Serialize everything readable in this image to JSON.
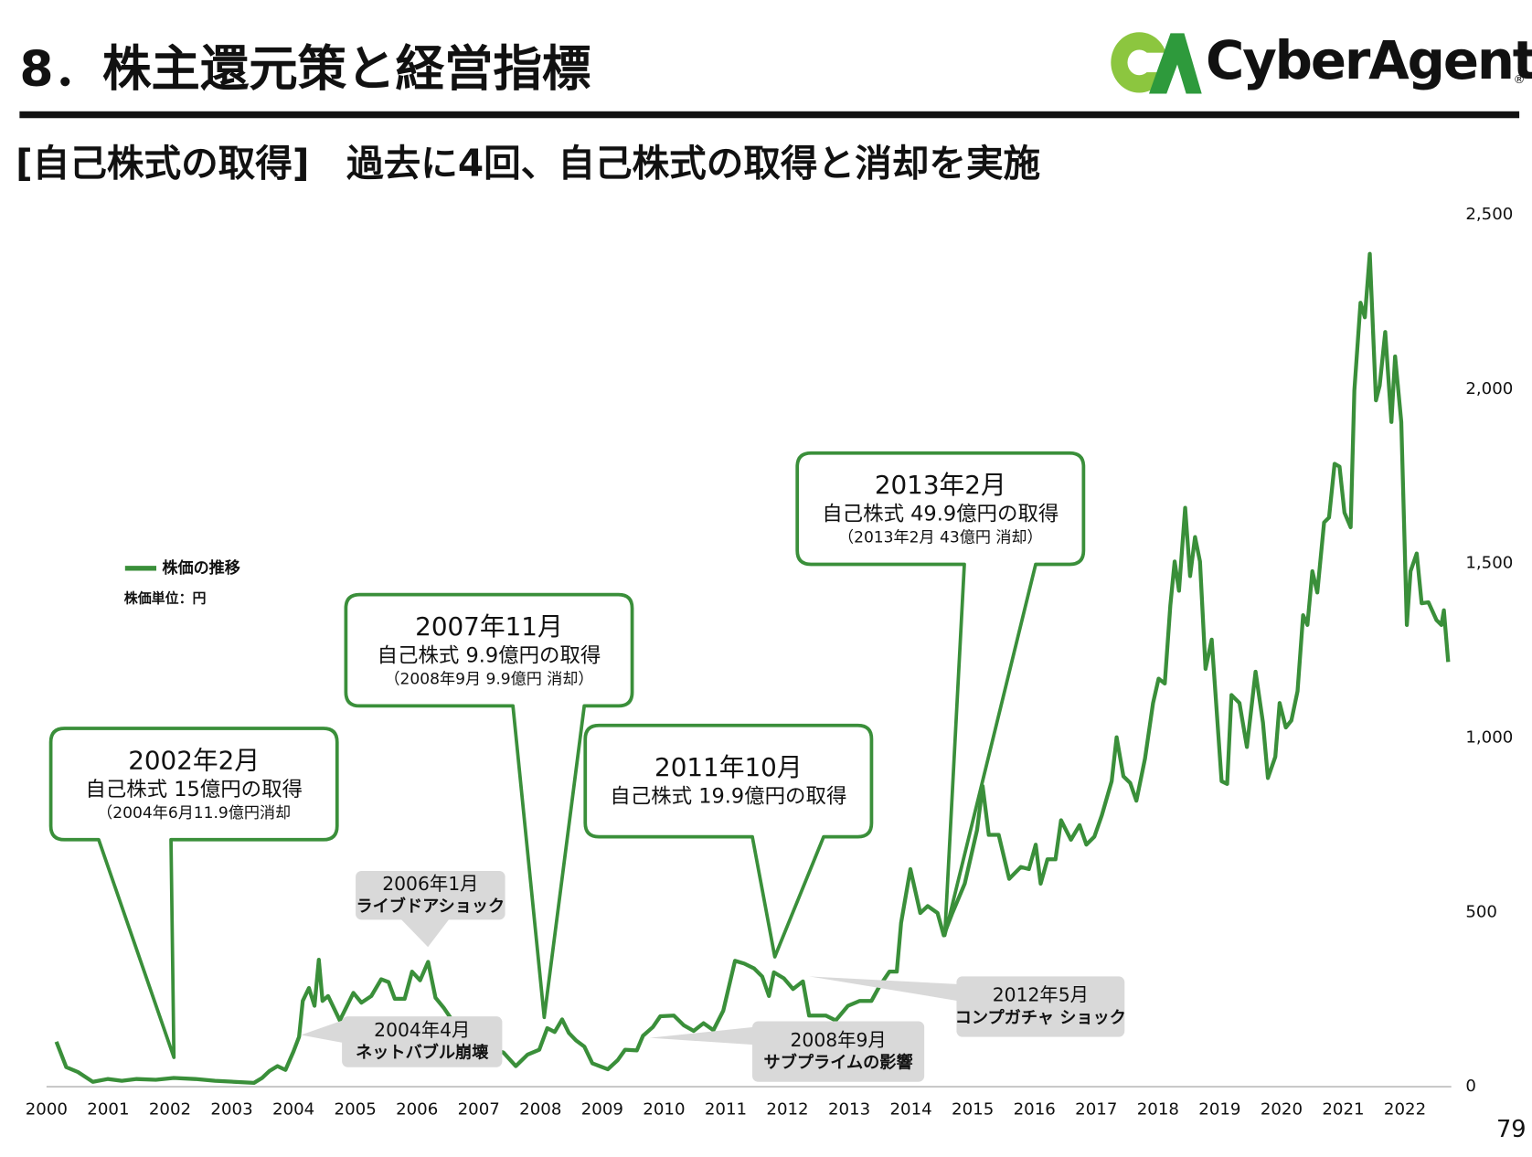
{
  "chart_data": {
    "type": "line",
    "title": "8．株主還元策と経営指標",
    "subtitle": "[自己株式の取得]　過去に4回、自己株式の取得と消却を実施",
    "logo": "CyberAgent",
    "logo_mark": "®",
    "page_number": "79",
    "unit_note": "株価単位：円",
    "x": [
      2000.16,
      2000.32,
      2000.51,
      2000.75,
      2000.99,
      2001.22,
      2001.46,
      2001.77,
      2002.06,
      2002.41,
      2002.73,
      2003.04,
      2003.36,
      2003.49,
      2003.61,
      2003.74,
      2003.87,
      2004.0,
      2004.09,
      2004.15,
      2004.25,
      2004.34,
      2004.41,
      2004.47,
      2004.56,
      2004.75,
      2004.97,
      2005.1,
      2005.26,
      2005.42,
      2005.54,
      2005.64,
      2005.8,
      2005.92,
      2006.05,
      2006.18,
      2006.3,
      2006.43,
      2006.68,
      2007.0,
      2007.4,
      2007.6,
      2007.79,
      2007.98,
      2008.11,
      2008.23,
      2008.35,
      2008.46,
      2008.58,
      2008.71,
      2008.84,
      2009.09,
      2009.25,
      2009.37,
      2009.56,
      2009.66,
      2009.82,
      2009.94,
      2010.16,
      2010.32,
      2010.48,
      2010.64,
      2010.8,
      2010.96,
      2011.15,
      2011.3,
      2011.46,
      2011.59,
      2011.7,
      2011.78,
      2011.94,
      2012.09,
      2012.25,
      2012.35,
      2012.47,
      2012.62,
      2012.78,
      2012.98,
      2013.17,
      2013.36,
      2013.49,
      2013.65,
      2013.77,
      2013.84,
      2013.99,
      2014.15,
      2014.27,
      2014.43,
      2014.53,
      2014.67,
      2014.87,
      2015.07,
      2015.16,
      2015.26,
      2015.42,
      2015.59,
      2015.78,
      2015.91,
      2016.02,
      2016.1,
      2016.21,
      2016.34,
      2016.43,
      2016.59,
      2016.73,
      2016.84,
      2016.97,
      2017.09,
      2017.25,
      2017.33,
      2017.44,
      2017.55,
      2017.65,
      2017.79,
      2017.92,
      2018.01,
      2018.11,
      2018.2,
      2018.27,
      2018.34,
      2018.44,
      2018.52,
      2018.6,
      2018.68,
      2018.77,
      2018.87,
      2019.03,
      2019.12,
      2019.19,
      2019.32,
      2019.44,
      2019.58,
      2019.7,
      2019.78,
      2019.9,
      2019.97,
      2020.07,
      2020.16,
      2020.26,
      2020.35,
      2020.42,
      2020.5,
      2020.58,
      2020.69,
      2020.77,
      2020.86,
      2020.94,
      2021.02,
      2021.12,
      2021.18,
      2021.28,
      2021.35,
      2021.43,
      2021.53,
      2021.59,
      2021.68,
      2021.78,
      2021.84,
      2021.94,
      2022.03,
      2022.09,
      2022.19,
      2022.27,
      2022.38,
      2022.51,
      2022.59,
      2022.63,
      2022.7
    ],
    "series": [
      {
        "name": "株価の推移",
        "color": "#3a8f3a",
        "values": [
          129,
          56,
          42,
          14,
          22,
          17,
          22,
          20,
          25,
          22,
          17,
          14,
          11,
          25,
          45,
          59,
          48,
          101,
          143,
          246,
          283,
          232,
          364,
          246,
          260,
          190,
          269,
          241,
          260,
          308,
          300,
          252,
          252,
          330,
          305,
          358,
          255,
          227,
          162,
          120,
          98,
          59,
          92,
          106,
          168,
          157,
          193,
          154,
          132,
          115,
          67,
          50,
          76,
          106,
          104,
          146,
          171,
          202,
          204,
          176,
          160,
          182,
          162,
          218,
          361,
          353,
          339,
          316,
          260,
          328,
          311,
          280,
          302,
          204,
          204,
          204,
          190,
          232,
          246,
          246,
          288,
          330,
          330,
          470,
          624,
          498,
          518,
          498,
          434,
          498,
          582,
          736,
          862,
          722,
          722,
          596,
          630,
          624,
          694,
          582,
          652,
          652,
          764,
          708,
          750,
          694,
          717,
          778,
          876,
          1002,
          890,
          871,
          820,
          941,
          1100,
          1170,
          1156,
          1380,
          1506,
          1422,
          1660,
          1464,
          1576,
          1506,
          1198,
          1282,
          876,
          868,
          1123,
          1100,
          974,
          1190,
          1044,
          885,
          946,
          1100,
          1030,
          1050,
          1134,
          1352,
          1324,
          1478,
          1417,
          1618,
          1632,
          1786,
          1778,
          1646,
          1604,
          1996,
          2248,
          2206,
          2388,
          1968,
          2010,
          2164,
          1906,
          2094,
          1906,
          1324,
          1478,
          1529,
          1386,
          1389,
          1338,
          1324,
          1366,
          1218
        ]
      }
    ],
    "xlim": [
      2000,
      2022.75
    ],
    "xticks": [
      2000,
      2001,
      2002,
      2003,
      2004,
      2005,
      2006,
      2007,
      2008,
      2009,
      2010,
      2011,
      2012,
      2013,
      2014,
      2015,
      2016,
      2017,
      2018,
      2019,
      2020,
      2021,
      2022
    ],
    "ylim": [
      0,
      2500
    ],
    "yticks": [
      0,
      500,
      {
        "value": 1000,
        "label": "1,000"
      },
      {
        "value": 1500,
        "label": "1,500"
      },
      {
        "value": 2000,
        "label": "2,000"
      },
      {
        "value": 2500,
        "label": "2,500"
      }
    ],
    "grid": false,
    "annotations": [
      {
        "lines": [
          "2002年2月",
          "自己株式 15億円の取得",
          "（2004年6月11.9億円消却"
        ]
      },
      {
        "lines": [
          "2007年11月",
          "自己株式 9.9億円の取得",
          "（2008年9月 9.9億円 消却）"
        ]
      },
      {
        "lines": [
          "2011年10月",
          "自己株式 19.9億円の取得"
        ]
      },
      {
        "lines": [
          "2013年2月",
          "自己株式 49.9億円の取得",
          "（2013年2月 43億円 消却）"
        ]
      }
    ],
    "events": [
      {
        "lines": [
          "2006年1月",
          "ライブドアショック"
        ]
      },
      {
        "lines": [
          "2004年4月",
          "ネットバブル崩壊"
        ]
      },
      {
        "lines": [
          "2008年9月",
          "サブプライムの影響"
        ]
      },
      {
        "lines": [
          "2012年5月",
          "コンプガチャ ショック"
        ]
      }
    ]
  }
}
